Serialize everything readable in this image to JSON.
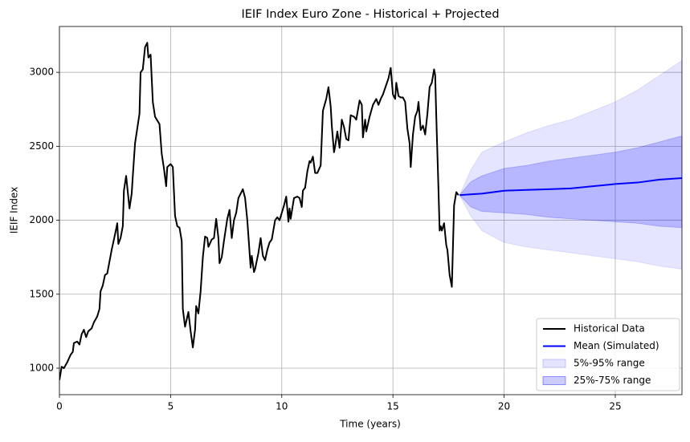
{
  "chart_data": {
    "type": "line",
    "title": "IEIF Index  Euro Zone - Historical + Projected",
    "x_label": "Time (years)",
    "y_label": "IEIF Index",
    "xlim": [
      0,
      28
    ],
    "ylim": [
      821,
      3310
    ],
    "xticks": [
      0,
      5,
      10,
      15,
      20,
      25
    ],
    "yticks": [
      1000,
      1500,
      2000,
      2500,
      3000
    ],
    "grid": true,
    "legend": "lower right",
    "series": [
      {
        "name": "Historical Data",
        "color": "#000000",
        "x": [
          0,
          0.1,
          0.2,
          0.35,
          0.5,
          0.6,
          0.65,
          0.8,
          0.9,
          1.0,
          1.1,
          1.2,
          1.3,
          1.45,
          1.55,
          1.7,
          1.8,
          1.85,
          1.95,
          2.05,
          2.15,
          2.25,
          2.35,
          2.45,
          2.55,
          2.6,
          2.65,
          2.75,
          2.85,
          2.9,
          3.0,
          3.15,
          3.25,
          3.3,
          3.4,
          3.6,
          3.65,
          3.75,
          3.85,
          3.95,
          4.0,
          4.1,
          4.2,
          4.3,
          4.5,
          4.6,
          4.7,
          4.8,
          4.85,
          5.0,
          5.1,
          5.2,
          5.3,
          5.4,
          5.5,
          5.55,
          5.65,
          5.8,
          5.9,
          6.0,
          6.1,
          6.15,
          6.25,
          6.35,
          6.45,
          6.55,
          6.65,
          6.7,
          6.85,
          6.95,
          7.05,
          7.15,
          7.2,
          7.3,
          7.4,
          7.55,
          7.65,
          7.75,
          7.85,
          7.95,
          8.05,
          8.25,
          8.35,
          8.45,
          8.6,
          8.65,
          8.75,
          8.8,
          8.95,
          9.05,
          9.15,
          9.25,
          9.35,
          9.45,
          9.55,
          9.7,
          9.8,
          9.9,
          10.0,
          10.1,
          10.2,
          10.3,
          10.35,
          10.4,
          10.55,
          10.7,
          10.8,
          10.9,
          10.95,
          11.05,
          11.15,
          11.25,
          11.3,
          11.4,
          11.5,
          11.6,
          11.75,
          11.85,
          12.0,
          12.1,
          12.2,
          12.25,
          12.35,
          12.4,
          12.5,
          12.6,
          12.7,
          12.8,
          12.9,
          13.0,
          13.1,
          13.25,
          13.35,
          13.5,
          13.6,
          13.65,
          13.75,
          13.8,
          13.95,
          14.1,
          14.25,
          14.35,
          14.45,
          14.55,
          14.8,
          14.9,
          15.0,
          15.1,
          15.15,
          15.25,
          15.35,
          15.45,
          15.55,
          15.65,
          15.75,
          15.8,
          15.9,
          16.0,
          16.1,
          16.15,
          16.25,
          16.35,
          16.45,
          16.55,
          16.65,
          16.75,
          16.85,
          16.9,
          16.95,
          17.05,
          17.1,
          17.15,
          17.2,
          17.3,
          17.4,
          17.45,
          17.55,
          17.65,
          17.75,
          17.85,
          17.95
        ],
        "values": [
          920,
          1010,
          1000,
          1040,
          1090,
          1110,
          1170,
          1180,
          1160,
          1230,
          1260,
          1210,
          1250,
          1270,
          1310,
          1350,
          1400,
          1520,
          1560,
          1630,
          1640,
          1720,
          1800,
          1870,
          1940,
          1980,
          1840,
          1880,
          1960,
          2200,
          2300,
          2080,
          2180,
          2300,
          2520,
          2720,
          3000,
          3020,
          3170,
          3200,
          3100,
          3120,
          2800,
          2700,
          2650,
          2450,
          2350,
          2230,
          2360,
          2380,
          2360,
          2030,
          1960,
          1950,
          1860,
          1400,
          1280,
          1380,
          1250,
          1140,
          1260,
          1420,
          1370,
          1520,
          1750,
          1890,
          1880,
          1820,
          1870,
          1880,
          2010,
          1880,
          1710,
          1750,
          1860,
          2010,
          2070,
          1880,
          2000,
          2050,
          2150,
          2210,
          2150,
          2000,
          1680,
          1760,
          1650,
          1670,
          1780,
          1880,
          1760,
          1730,
          1800,
          1850,
          1870,
          2000,
          2020,
          2000,
          2050,
          2100,
          2160,
          1990,
          2080,
          2010,
          2150,
          2160,
          2150,
          2090,
          2200,
          2220,
          2330,
          2400,
          2390,
          2430,
          2320,
          2320,
          2370,
          2740,
          2820,
          2900,
          2770,
          2640,
          2460,
          2500,
          2600,
          2490,
          2680,
          2630,
          2550,
          2540,
          2710,
          2700,
          2680,
          2810,
          2780,
          2560,
          2680,
          2600,
          2700,
          2780,
          2820,
          2780,
          2820,
          2850,
          2960,
          3030,
          2850,
          2820,
          2930,
          2840,
          2830,
          2830,
          2800,
          2620,
          2520,
          2360,
          2580,
          2700,
          2740,
          2800,
          2610,
          2640,
          2580,
          2720,
          2900,
          2930,
          3020,
          2980,
          2700,
          2200,
          1930,
          1960,
          1930,
          1980,
          1830,
          1800,
          1630,
          1550,
          2100,
          2190,
          2170
        ]
      },
      {
        "name": "Mean (Simulated)",
        "color": "#0000ff",
        "x": [
          18,
          18.5,
          19,
          20,
          21,
          22,
          23,
          24,
          25,
          26,
          27,
          28
        ],
        "values": [
          2170,
          2175,
          2180,
          2200,
          2205,
          2210,
          2215,
          2230,
          2245,
          2255,
          2275,
          2285
        ]
      }
    ],
    "bands": [
      {
        "name": "5%-95% range",
        "color": "#0000ff",
        "alpha": 0.1,
        "x": [
          18,
          18.5,
          19,
          20,
          21,
          22,
          23,
          24,
          25,
          26,
          27,
          28
        ],
        "lower": [
          2170,
          2030,
          1930,
          1850,
          1820,
          1800,
          1780,
          1760,
          1740,
          1720,
          1690,
          1670
        ],
        "upper": [
          2170,
          2340,
          2460,
          2530,
          2590,
          2640,
          2680,
          2740,
          2800,
          2880,
          2980,
          3080
        ]
      },
      {
        "name": "25%-75% range",
        "color": "#0000ff",
        "alpha": 0.2,
        "x": [
          18,
          18.5,
          19,
          20,
          21,
          22,
          23,
          24,
          25,
          26,
          27,
          28
        ],
        "lower": [
          2170,
          2090,
          2060,
          2050,
          2040,
          2020,
          2010,
          2000,
          1990,
          1980,
          1960,
          1950
        ],
        "upper": [
          2170,
          2260,
          2300,
          2350,
          2370,
          2400,
          2420,
          2440,
          2460,
          2490,
          2530,
          2570
        ]
      }
    ]
  }
}
